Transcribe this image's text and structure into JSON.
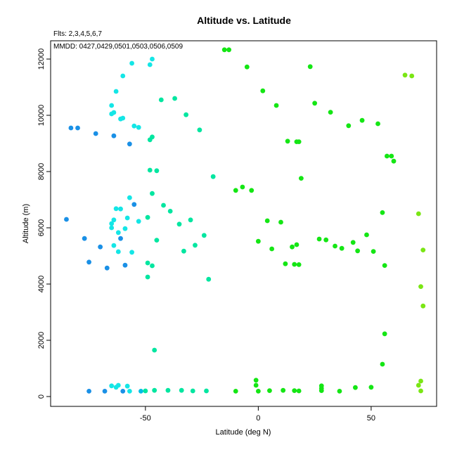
{
  "chart_data": {
    "type": "scatter",
    "title": "Altitude vs. Latitude",
    "annotations": [
      "Flts: 2,3,4,5,6,7",
      "MMDD: 0427,0429,0501,0503,0506,0509"
    ],
    "xlabel": "Latitude (deg N)",
    "ylabel": "Altitude (m)",
    "xlim": [
      -92,
      79
    ],
    "ylim": [
      -350,
      12650
    ],
    "xticks": [
      -50,
      0,
      50
    ],
    "yticks": [
      0,
      2000,
      4000,
      6000,
      8000,
      10000,
      12000
    ],
    "grid": false,
    "colors": {
      "c1": "#1a90e6",
      "c2": "#00bde6",
      "c3": "#14e6e6",
      "c4": "#00e6a0",
      "c5": "#14e614",
      "c6": "#7ae614"
    },
    "points": [
      {
        "x": -83,
        "y": 9550,
        "c": "c1"
      },
      {
        "x": -80,
        "y": 9550,
        "c": "c1"
      },
      {
        "x": -72,
        "y": 9350,
        "c": "c1"
      },
      {
        "x": -64,
        "y": 9270,
        "c": "c1"
      },
      {
        "x": -57,
        "y": 8980,
        "c": "c1"
      },
      {
        "x": -85,
        "y": 6300,
        "c": "c1"
      },
      {
        "x": -77,
        "y": 5620,
        "c": "c1"
      },
      {
        "x": -70,
        "y": 5320,
        "c": "c1"
      },
      {
        "x": -75,
        "y": 4780,
        "c": "c1"
      },
      {
        "x": -67,
        "y": 4570,
        "c": "c1"
      },
      {
        "x": -59,
        "y": 4670,
        "c": "c1"
      },
      {
        "x": -55,
        "y": 6830,
        "c": "c1"
      },
      {
        "x": -61,
        "y": 5620,
        "c": "c1"
      },
      {
        "x": -75,
        "y": 190,
        "c": "c1"
      },
      {
        "x": -68,
        "y": 190,
        "c": "c1"
      },
      {
        "x": -60,
        "y": 190,
        "c": "c1"
      },
      {
        "x": -56,
        "y": 11850,
        "c": "c3"
      },
      {
        "x": -60,
        "y": 11400,
        "c": "c3"
      },
      {
        "x": -63,
        "y": 10850,
        "c": "c3"
      },
      {
        "x": -65,
        "y": 10350,
        "c": "c3"
      },
      {
        "x": -65,
        "y": 10050,
        "c": "c3"
      },
      {
        "x": -64,
        "y": 10100,
        "c": "c3"
      },
      {
        "x": -61,
        "y": 9870,
        "c": "c3"
      },
      {
        "x": -60,
        "y": 9900,
        "c": "c3"
      },
      {
        "x": -55,
        "y": 9620,
        "c": "c3"
      },
      {
        "x": -53,
        "y": 9570,
        "c": "c3"
      },
      {
        "x": -47,
        "y": 12000,
        "c": "c3"
      },
      {
        "x": -48,
        "y": 11800,
        "c": "c3"
      },
      {
        "x": -57,
        "y": 7070,
        "c": "c3"
      },
      {
        "x": -63,
        "y": 6680,
        "c": "c3"
      },
      {
        "x": -61,
        "y": 6670,
        "c": "c3"
      },
      {
        "x": -58,
        "y": 6350,
        "c": "c3"
      },
      {
        "x": -64,
        "y": 6280,
        "c": "c3"
      },
      {
        "x": -65,
        "y": 6150,
        "c": "c3"
      },
      {
        "x": -65,
        "y": 6000,
        "c": "c3"
      },
      {
        "x": -59,
        "y": 5970,
        "c": "c3"
      },
      {
        "x": -62,
        "y": 5830,
        "c": "c3"
      },
      {
        "x": -64,
        "y": 5370,
        "c": "c3"
      },
      {
        "x": -62,
        "y": 5150,
        "c": "c3"
      },
      {
        "x": -56,
        "y": 5130,
        "c": "c3"
      },
      {
        "x": -53,
        "y": 6230,
        "c": "c3"
      },
      {
        "x": -65,
        "y": 380,
        "c": "c3"
      },
      {
        "x": -63,
        "y": 330,
        "c": "c3"
      },
      {
        "x": -62,
        "y": 400,
        "c": "c3"
      },
      {
        "x": -58,
        "y": 370,
        "c": "c3"
      },
      {
        "x": -57,
        "y": 190,
        "c": "c3"
      },
      {
        "x": -52,
        "y": 190,
        "c": "c2"
      },
      {
        "x": -47,
        "y": 9230,
        "c": "c4"
      },
      {
        "x": -48,
        "y": 9130,
        "c": "c4"
      },
      {
        "x": -43,
        "y": 10550,
        "c": "c4"
      },
      {
        "x": -37,
        "y": 10600,
        "c": "c4"
      },
      {
        "x": -32,
        "y": 10020,
        "c": "c4"
      },
      {
        "x": -26,
        "y": 9480,
        "c": "c4"
      },
      {
        "x": -48,
        "y": 8050,
        "c": "c4"
      },
      {
        "x": -45,
        "y": 8030,
        "c": "c4"
      },
      {
        "x": -47,
        "y": 7220,
        "c": "c4"
      },
      {
        "x": -42,
        "y": 6800,
        "c": "c4"
      },
      {
        "x": -39,
        "y": 6590,
        "c": "c4"
      },
      {
        "x": -49,
        "y": 6370,
        "c": "c4"
      },
      {
        "x": -35,
        "y": 6130,
        "c": "c4"
      },
      {
        "x": -30,
        "y": 6280,
        "c": "c4"
      },
      {
        "x": -24,
        "y": 5730,
        "c": "c4"
      },
      {
        "x": -45,
        "y": 5560,
        "c": "c4"
      },
      {
        "x": -28,
        "y": 5380,
        "c": "c4"
      },
      {
        "x": -33,
        "y": 5170,
        "c": "c4"
      },
      {
        "x": -49,
        "y": 4750,
        "c": "c4"
      },
      {
        "x": -47,
        "y": 4650,
        "c": "c4"
      },
      {
        "x": -49,
        "y": 4250,
        "c": "c4"
      },
      {
        "x": -20,
        "y": 7820,
        "c": "c4"
      },
      {
        "x": -22,
        "y": 4170,
        "c": "c4"
      },
      {
        "x": -46,
        "y": 1650,
        "c": "c4"
      },
      {
        "x": -50,
        "y": 200,
        "c": "c4"
      },
      {
        "x": -46,
        "y": 220,
        "c": "c4"
      },
      {
        "x": -40,
        "y": 220,
        "c": "c4"
      },
      {
        "x": -34,
        "y": 220,
        "c": "c4"
      },
      {
        "x": -29,
        "y": 200,
        "c": "c4"
      },
      {
        "x": -23,
        "y": 200,
        "c": "c4"
      },
      {
        "x": -15,
        "y": 12330,
        "c": "c5"
      },
      {
        "x": -13,
        "y": 12330,
        "c": "c5"
      },
      {
        "x": -5,
        "y": 11720,
        "c": "c5"
      },
      {
        "x": 23,
        "y": 11730,
        "c": "c5"
      },
      {
        "x": 2,
        "y": 10870,
        "c": "c5"
      },
      {
        "x": 8,
        "y": 10350,
        "c": "c5"
      },
      {
        "x": 25,
        "y": 10430,
        "c": "c5"
      },
      {
        "x": 32,
        "y": 10110,
        "c": "c5"
      },
      {
        "x": 46,
        "y": 9820,
        "c": "c5"
      },
      {
        "x": 53,
        "y": 9700,
        "c": "c5"
      },
      {
        "x": 40,
        "y": 9630,
        "c": "c5"
      },
      {
        "x": 13,
        "y": 9080,
        "c": "c5"
      },
      {
        "x": 17,
        "y": 9060,
        "c": "c5"
      },
      {
        "x": 18,
        "y": 9060,
        "c": "c5"
      },
      {
        "x": 57,
        "y": 8550,
        "c": "c5"
      },
      {
        "x": 59,
        "y": 8550,
        "c": "c5"
      },
      {
        "x": 60,
        "y": 8370,
        "c": "c5"
      },
      {
        "x": 19,
        "y": 7760,
        "c": "c5"
      },
      {
        "x": -7,
        "y": 7450,
        "c": "c5"
      },
      {
        "x": -10,
        "y": 7330,
        "c": "c5"
      },
      {
        "x": -3,
        "y": 7330,
        "c": "c5"
      },
      {
        "x": 55,
        "y": 6540,
        "c": "c5"
      },
      {
        "x": 4,
        "y": 6250,
        "c": "c5"
      },
      {
        "x": 10,
        "y": 6200,
        "c": "c5"
      },
      {
        "x": 48,
        "y": 5750,
        "c": "c5"
      },
      {
        "x": 27,
        "y": 5600,
        "c": "c5"
      },
      {
        "x": 30,
        "y": 5570,
        "c": "c5"
      },
      {
        "x": 0,
        "y": 5520,
        "c": "c5"
      },
      {
        "x": 42,
        "y": 5480,
        "c": "c5"
      },
      {
        "x": 17,
        "y": 5400,
        "c": "c5"
      },
      {
        "x": 15,
        "y": 5320,
        "c": "c5"
      },
      {
        "x": 34,
        "y": 5350,
        "c": "c5"
      },
      {
        "x": 37,
        "y": 5270,
        "c": "c5"
      },
      {
        "x": 6,
        "y": 5250,
        "c": "c5"
      },
      {
        "x": 44,
        "y": 5180,
        "c": "c5"
      },
      {
        "x": 51,
        "y": 5160,
        "c": "c5"
      },
      {
        "x": 12,
        "y": 4720,
        "c": "c5"
      },
      {
        "x": 16,
        "y": 4700,
        "c": "c5"
      },
      {
        "x": 18,
        "y": 4690,
        "c": "c5"
      },
      {
        "x": 56,
        "y": 4660,
        "c": "c5"
      },
      {
        "x": 56,
        "y": 2230,
        "c": "c5"
      },
      {
        "x": 55,
        "y": 1150,
        "c": "c5"
      },
      {
        "x": -10,
        "y": 190,
        "c": "c5"
      },
      {
        "x": -1,
        "y": 580,
        "c": "c5"
      },
      {
        "x": -1,
        "y": 400,
        "c": "c5"
      },
      {
        "x": 0,
        "y": 190,
        "c": "c5"
      },
      {
        "x": 5,
        "y": 210,
        "c": "c5"
      },
      {
        "x": 11,
        "y": 220,
        "c": "c5"
      },
      {
        "x": 16,
        "y": 210,
        "c": "c5"
      },
      {
        "x": 18,
        "y": 200,
        "c": "c5"
      },
      {
        "x": 28,
        "y": 380,
        "c": "c5"
      },
      {
        "x": 28,
        "y": 290,
        "c": "c5"
      },
      {
        "x": 28,
        "y": 210,
        "c": "c5"
      },
      {
        "x": 36,
        "y": 190,
        "c": "c5"
      },
      {
        "x": 43,
        "y": 320,
        "c": "c5"
      },
      {
        "x": 50,
        "y": 330,
        "c": "c5"
      },
      {
        "x": 65,
        "y": 11430,
        "c": "c6"
      },
      {
        "x": 68,
        "y": 11400,
        "c": "c6"
      },
      {
        "x": 71,
        "y": 6500,
        "c": "c6"
      },
      {
        "x": 73,
        "y": 5210,
        "c": "c6"
      },
      {
        "x": 72,
        "y": 3910,
        "c": "c6"
      },
      {
        "x": 73,
        "y": 3220,
        "c": "c6"
      },
      {
        "x": 72,
        "y": 550,
        "c": "c6"
      },
      {
        "x": 71,
        "y": 400,
        "c": "c6"
      },
      {
        "x": 72,
        "y": 200,
        "c": "c6"
      }
    ]
  }
}
